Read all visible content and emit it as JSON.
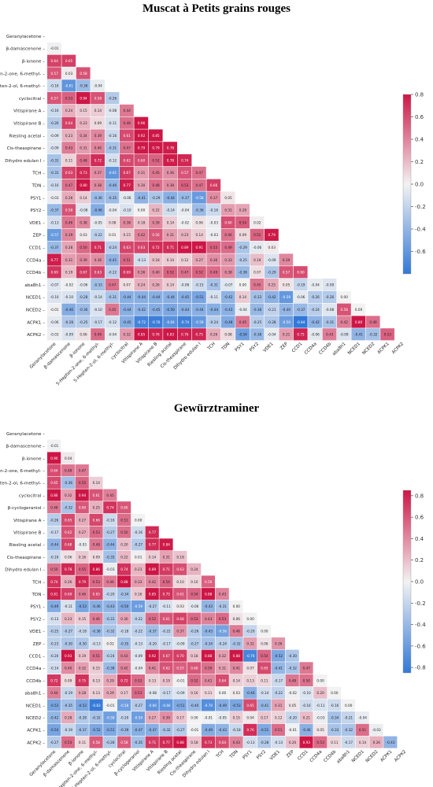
{
  "chart_data": [
    {
      "type": "heatmap",
      "title": "Muscat à Petits grains rouges",
      "labels": [
        "Geranylacetone",
        "β-damascenone",
        "β-ionone",
        "5-Hepten-2-one, 6-methyl-",
        "5-Hepten-2-ol, 6-methyl-",
        "cyclocitral",
        "Vitispirane A",
        "Vitispirane B",
        "Riesling acetal",
        "Cis-theaspirane",
        "Dihydro edulan I",
        "TCH",
        "TDN",
        "PSY1",
        "PSY2",
        "VDE1",
        "ZEP",
        "CCD1",
        "CCD4a",
        "CCD4b",
        "aba8h1",
        "NCED1",
        "NCED2",
        "ACPK1",
        "ACPK2"
      ],
      "colorbar_ticks": [
        0.8,
        0.6,
        0.4,
        0.2,
        0.0,
        -0.2,
        -0.4,
        -0.6
      ],
      "vmin": -0.8,
      "vmax": 0.8,
      "matrix": [
        [],
        [
          -0.01
        ],
        [
          0.64,
          0.65
        ],
        [
          0.57,
          0.03,
          0.58
        ],
        [
          -0.16,
          -0.61,
          -0.36,
          -0.04
        ],
        [
          0.57,
          0.53,
          0.94,
          0.58,
          -0.26
        ],
        [
          -0.16,
          0.24,
          0.15,
          0.14,
          -0.08,
          0.44
        ],
        [
          -0.26,
          0.64,
          0.23,
          0.09,
          -0.11,
          0.48,
          0.96
        ],
        [
          -0.09,
          0.23,
          0.34,
          0.39,
          -0.16,
          0.61,
          0.92,
          0.85
        ],
        [
          -0.09,
          0.43,
          0.31,
          0.4,
          -0.31,
          0.47,
          0.79,
          0.79,
          0.78
        ],
        [
          -0.31,
          0.11,
          0.48,
          0.72,
          -0.12,
          0.62,
          0.6,
          0.52,
          0.78,
          0.74
        ],
        [
          -0.31,
          0.63,
          0.73,
          0.37,
          -0.61,
          0.67,
          0.31,
          0.45,
          0.36,
          0.57,
          0.47
        ],
        [
          -0.16,
          0.47,
          0.8,
          0.38,
          -0.4,
          0.77,
          0.3,
          0.48,
          0.38,
          0.53,
          0.47,
          0.66
        ],
        [
          -0.03,
          0.26,
          0.14,
          -0.36,
          -0.35,
          -0.06,
          -0.41,
          -0.29,
          -0.44,
          -0.37,
          -0.58,
          0.37,
          0.05
        ],
        [
          -0.37,
          0.58,
          -0.08,
          -0.46,
          -0.04,
          -0.1,
          0.0,
          0.22,
          -0.14,
          -0.04,
          -0.36,
          -0.16,
          0.31,
          0.28
        ],
        [
          -0.13,
          0.46,
          0.38,
          -0.05,
          0.08,
          0.38,
          0.18,
          0.39,
          0.14,
          -0.02,
          0.06,
          -0.03,
          0.6,
          0.54,
          0.02
        ],
        [
          -0.57,
          0.39,
          0.03,
          -0.22,
          0.01,
          0.15,
          0.42,
          0.56,
          0.31,
          0.23,
          0.14,
          -0.03,
          0.46,
          0.09,
          0.52,
          0.79
        ],
        [
          -0.37,
          0.28,
          0.5,
          0.71,
          -0.24,
          0.63,
          0.63,
          0.72,
          0.71,
          0.89,
          0.91,
          0.53,
          0.49,
          -0.29,
          -0.06,
          0.03
        ],
        [
          0.77,
          0.31,
          0.39,
          0.36,
          -0.41,
          0.51,
          -0.13,
          0.18,
          0.14,
          0.12,
          0.27,
          0.36,
          0.33,
          -0.25,
          0.19,
          -0.09,
          0.39
        ],
        [
          0.69,
          0.19,
          0.67,
          0.63,
          -0.22,
          0.69,
          0.36,
          0.4,
          0.52,
          0.47,
          0.52,
          0.49,
          0.38,
          -0.38,
          0.07,
          -0.29,
          0.57,
          0.6
        ],
        [
          -0.07,
          -0.02,
          -0.06,
          -0.33,
          0.47,
          0.07,
          0.24,
          0.26,
          0.14,
          -0.08,
          -0.15,
          -0.31,
          -0.07,
          -0.0,
          0.45,
          0.25,
          0.05,
          -0.19,
          -0.04,
          -0.09
        ],
        [
          -0.1,
          -0.1,
          -0.28,
          -0.14,
          -0.31,
          -0.44,
          -0.44,
          -0.44,
          -0.44,
          -0.45,
          -0.51,
          -0.11,
          -0.42,
          0.14,
          -0.33,
          -0.42,
          -0.59,
          -0.06,
          -0.26,
          -0.26,
          0.0
        ],
        [
          -0.01,
          -0.46,
          -0.36,
          -0.1,
          0.45,
          -0.44,
          -0.42,
          -0.45,
          -0.5,
          -0.44,
          -0.44,
          -0.44,
          -0.43,
          -0.04,
          -0.38,
          -0.21,
          -0.4,
          -0.37,
          -0.24,
          -0.08,
          0.58,
          0.0
        ],
        [
          -0.06,
          -0.28,
          -0.25,
          -0.17,
          -0.12,
          -0.45,
          -0.72,
          -0.76,
          -0.64,
          -0.74,
          -0.59,
          -0.24,
          -0.48,
          0.45,
          -0.25,
          -0.28,
          -0.56,
          -0.84,
          -0.42,
          -0.31,
          0.42,
          0.8,
          0.48
        ],
        [
          -0.03,
          -0.09,
          0.06,
          0.49,
          -0.04,
          0.32,
          0.85,
          0.76,
          0.83,
          0.76,
          0.75,
          0.26,
          0.08,
          -0.54,
          -0.38,
          -0.04,
          0.31,
          0.75,
          -0.06,
          0.43,
          -0.09,
          -0.41,
          -0.32,
          0.53
        ]
      ]
    },
    {
      "type": "heatmap",
      "title": "Gewürztraminer",
      "labels": [
        "Geranylacetone",
        "β-damascenone",
        "β-ionone",
        "5-Hepten-2-one, 6-methyl-",
        "5-Hepten-2-ol, 6-methyl-",
        "cyclocitral",
        "β-cyclogeraniol",
        "Vitispirane A",
        "Vitispirane B",
        "Riesling acetal",
        "Cis-theaspirane",
        "Dihydro edulan I",
        "TCH",
        "TDN",
        "PSY1",
        "PSY2",
        "VDE1",
        "ZEP",
        "CCD1",
        "CCD4a",
        "CCD4b",
        "aba8h1",
        "NCED1",
        "NCED2",
        "ACPK1",
        "ACPK2"
      ],
      "colorbar_ticks": [
        0.8,
        0.6,
        0.4,
        0.2,
        0.0,
        -0.2,
        -0.4,
        -0.6,
        -0.8
      ],
      "vmin": -0.85,
      "vmax": 0.85,
      "matrix": [
        [],
        [
          -0.01
        ],
        [
          0.9,
          0.04
        ],
        [
          0.64,
          0.48,
          0.47
        ],
        [
          0.65,
          -0.36,
          0.55,
          0.14
        ],
        [
          0.86,
          0.32,
          0.94,
          0.61,
          0.45
        ],
        [
          0.48,
          -0.32,
          0.6,
          0.25,
          0.74,
          0.6
        ],
        [
          -0.26,
          0.65,
          0.27,
          0.66,
          -0.16,
          0.51,
          -0.0
        ],
        [
          -0.17,
          0.62,
          0.27,
          0.53,
          -0.27,
          0.5,
          -0.16,
          0.77
        ],
        [
          -0.44,
          0.68,
          -0.03,
          0.48,
          -0.44,
          0.2,
          -0.27,
          0.77,
          0.84
        ],
        [
          -0.19,
          0.06,
          0.16,
          0.09,
          -0.35,
          0.22,
          0.01,
          0.14,
          0.31,
          0.18
        ],
        [
          0.5,
          0.78,
          0.55,
          0.86,
          -0.03,
          0.74,
          0.23,
          0.89,
          0.71,
          0.63,
          0.24
        ],
        [
          0.74,
          0.26,
          0.79,
          0.53,
          0.46,
          0.88,
          0.33,
          0.42,
          0.54,
          0.1,
          0.1,
          0.56
        ],
        [
          0.81,
          0.69,
          0.46,
          0.65,
          -0.2,
          -0.34,
          0.16,
          0.85,
          0.75,
          0.61,
          0.54,
          0.88,
          0.43
        ],
        [
          -0.49,
          -0.11,
          -0.53,
          -0.46,
          -0.43,
          -0.5,
          -0.59,
          -0.27,
          -0.11,
          0.03,
          -0.06,
          -0.43,
          -0.31,
          0.0
        ],
        [
          -0.13,
          0.23,
          0.15,
          0.46,
          -0.31,
          0.3,
          -0.22,
          0.52,
          0.61,
          0.68,
          0.53,
          0.43,
          0.53,
          0.06,
          0.0
        ],
        [
          -0.25,
          -0.27,
          -0.18,
          -0.38,
          -0.32,
          -0.18,
          -0.22,
          -0.37,
          -0.22,
          0.37,
          -0.26,
          -0.43,
          -0.56,
          0.46,
          -0.2,
          0.0
        ],
        [
          -0.23,
          -0.3,
          -0.3,
          -0.13,
          0.02,
          -0.35,
          -0.13,
          -0.2,
          -0.17,
          -0.09,
          -0.27,
          -0.34,
          -0.24,
          -0.32,
          0.32,
          0.06,
          0.36
        ],
        [
          -0.2,
          0.93,
          0.19,
          0.51,
          -0.24,
          0.43,
          -0.09,
          0.92,
          0.67,
          0.7,
          0.18,
          0.88,
          0.32,
          0.88,
          -0.76,
          0.54,
          -0.52,
          -0.3
        ],
        [
          -0.14,
          0.4,
          0.32,
          0.15,
          -0.38,
          0.42,
          -0.04,
          0.41,
          0.62,
          0.57,
          0.6,
          0.5,
          0.31,
          0.41,
          0.07,
          0.65,
          -0.41,
          -0.32,
          0.47
        ],
        [
          0.72,
          0.09,
          0.75,
          0.13,
          0.29,
          0.72,
          0.52,
          0.13,
          0.19,
          -0.01,
          0.52,
          0.41,
          0.64,
          0.14,
          0.13,
          0.11,
          -0.17,
          0.48,
          0.5,
          -0.0
        ],
        [
          0.44,
          -0.19,
          0.28,
          0.13,
          0.29,
          0.17,
          0.53,
          -0.08,
          -0.17,
          -0.09,
          0.16,
          0.11,
          0.0,
          0.03,
          -0.46,
          -0.14,
          -0.22,
          -0.02,
          -0.1,
          0.2,
          0.0
        ],
        [
          -0.53,
          -0.35,
          -0.53,
          -0.83,
          -0.01,
          -0.58,
          -0.27,
          -0.66,
          -0.66,
          -0.51,
          -0.4,
          -0.7,
          -0.49,
          -0.53,
          0.65,
          -0.41,
          0.31,
          0.05,
          -0.16,
          -0.11,
          -0.16,
          0.0
        ],
        [
          -0.42,
          0.28,
          -0.28,
          -0.32,
          -0.58,
          -0.2,
          -0.59,
          0.27,
          0.39,
          0.17,
          -0.0,
          -0.01,
          -0.05,
          0.15,
          0.04,
          0.17,
          0.12,
          -0.2,
          0.21,
          -0.03,
          -0.34,
          -0.21,
          -0.04
        ],
        [
          -0.54,
          -0.19,
          -0.37,
          -0.52,
          -0.51,
          -0.39,
          -0.47,
          -0.47,
          -0.32,
          -0.27,
          -0.01,
          -0.49,
          -0.43,
          -0.18,
          0.76,
          -0.51,
          0.51,
          -0.01,
          -0.46,
          0.05,
          -0.33,
          -0.32,
          0.51,
          -0.03
        ],
        [
          -0.27,
          0.53,
          0.11,
          0.58,
          -0.28,
          0.58,
          -0.35,
          0.71,
          0.77,
          0.88,
          0.18,
          0.73,
          0.64,
          0.43,
          -0.13,
          -0.28,
          -0.13,
          0.2,
          0.93,
          0.53,
          0.11,
          -0.17,
          0.14,
          0.26,
          -0.43
        ]
      ]
    }
  ]
}
